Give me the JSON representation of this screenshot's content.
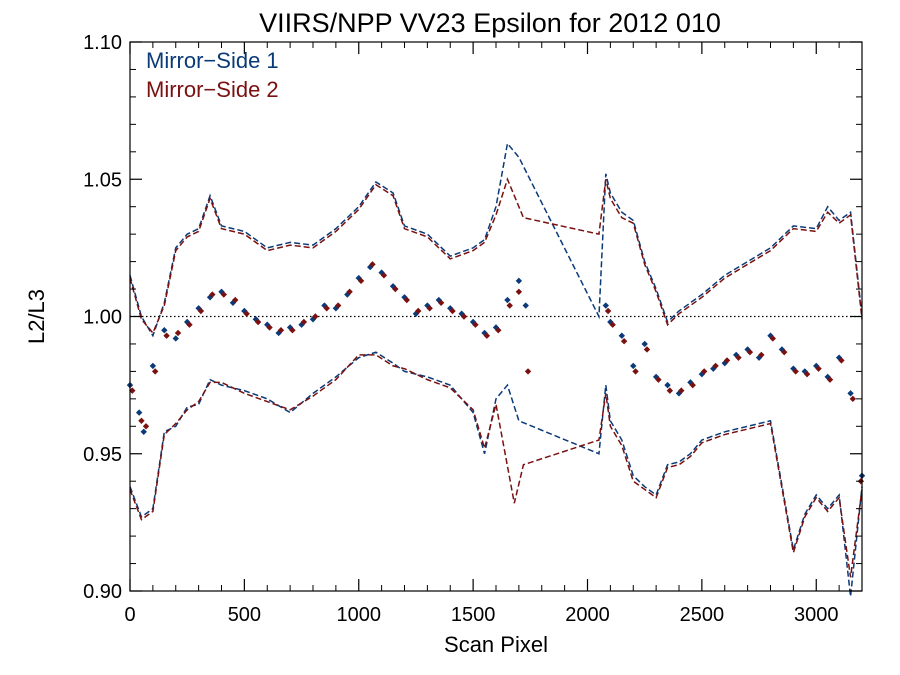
{
  "chart_data": {
    "type": "scatter",
    "title": "VIIRS/NPP VV23 Epsilon for 2012 010",
    "xlabel": "Scan Pixel",
    "ylabel": "L2/L3",
    "xlim": [
      0,
      3200
    ],
    "ylim": [
      0.9,
      1.1
    ],
    "xticks": [
      0,
      500,
      1000,
      1500,
      2000,
      2500,
      3000
    ],
    "xtick_labels": [
      "0",
      "500",
      "1000",
      "1500",
      "2000",
      "2500",
      "3000"
    ],
    "yticks": [
      0.9,
      0.95,
      1.0,
      1.05,
      1.1
    ],
    "ytick_labels": [
      "0.90",
      "0.95",
      "1.00",
      "1.05",
      "1.10"
    ],
    "reference_line": {
      "y": 1.0,
      "style": "dotted",
      "color": "#000000"
    },
    "grid": false,
    "legend_position": "top-left",
    "series": [
      {
        "name": "Mirror−Side 1",
        "color": "#0b3a78",
        "marker": "diamond",
        "x": [
          0,
          40,
          60,
          100,
          150,
          200,
          250,
          300,
          350,
          400,
          450,
          500,
          550,
          600,
          650,
          700,
          750,
          800,
          850,
          900,
          950,
          1000,
          1050,
          1100,
          1150,
          1200,
          1250,
          1300,
          1350,
          1400,
          1450,
          1500,
          1550,
          1600,
          1650,
          1700,
          1730,
          2080,
          2100,
          2150,
          2200,
          2250,
          2300,
          2350,
          2400,
          2450,
          2500,
          2550,
          2600,
          2650,
          2700,
          2750,
          2800,
          2850,
          2900,
          2950,
          3000,
          3050,
          3100,
          3150,
          3200
        ],
        "y": [
          0.975,
          0.965,
          0.958,
          0.982,
          0.995,
          0.992,
          0.998,
          1.003,
          1.007,
          1.009,
          1.005,
          1.002,
          0.999,
          0.997,
          0.994,
          0.996,
          0.997,
          0.999,
          1.004,
          1.003,
          1.008,
          1.014,
          1.018,
          1.016,
          1.011,
          1.007,
          1.001,
          1.004,
          1.006,
          1.003,
          1.001,
          0.998,
          0.994,
          0.996,
          1.006,
          1.013,
          1.004,
          1.004,
          0.998,
          0.993,
          0.982,
          0.99,
          0.978,
          0.975,
          0.972,
          0.976,
          0.979,
          0.981,
          0.983,
          0.986,
          0.988,
          0.985,
          0.993,
          0.988,
          0.981,
          0.98,
          0.982,
          0.978,
          0.985,
          0.972,
          0.942
        ]
      },
      {
        "name": "Mirror−Side 2",
        "color": "#7a1010",
        "marker": "diamond",
        "x": [
          10,
          50,
          70,
          110,
          160,
          210,
          260,
          310,
          360,
          410,
          460,
          510,
          560,
          610,
          660,
          710,
          760,
          810,
          860,
          910,
          960,
          1010,
          1060,
          1110,
          1160,
          1210,
          1260,
          1310,
          1360,
          1410,
          1460,
          1510,
          1560,
          1610,
          1660,
          1700,
          1740,
          2090,
          2110,
          2160,
          2210,
          2260,
          2310,
          2360,
          2410,
          2460,
          2510,
          2560,
          2610,
          2660,
          2710,
          2760,
          2810,
          2860,
          2910,
          2960,
          3010,
          3060,
          3110,
          3160,
          3195
        ],
        "y": [
          0.973,
          0.962,
          0.96,
          0.98,
          0.993,
          0.994,
          0.997,
          1.002,
          1.008,
          1.008,
          1.006,
          1.001,
          0.998,
          0.996,
          0.995,
          0.995,
          0.998,
          1.0,
          1.003,
          1.004,
          1.009,
          1.013,
          1.019,
          1.015,
          1.01,
          1.006,
          1.002,
          1.003,
          1.005,
          1.002,
          1.0,
          0.997,
          0.993,
          0.995,
          1.004,
          1.009,
          0.98,
          1.002,
          0.997,
          0.991,
          0.98,
          0.988,
          0.977,
          0.973,
          0.973,
          0.975,
          0.98,
          0.982,
          0.984,
          0.985,
          0.987,
          0.986,
          0.992,
          0.987,
          0.98,
          0.979,
          0.981,
          0.977,
          0.984,
          0.97,
          0.94
        ]
      }
    ],
    "envelopes": [
      {
        "series": "Mirror−Side 1",
        "style": "dashed",
        "color": "#0b3a78",
        "upper": {
          "x": [
            0,
            50,
            100,
            150,
            200,
            250,
            300,
            350,
            400,
            500,
            600,
            700,
            800,
            900,
            1000,
            1075,
            1150,
            1200,
            1300,
            1400,
            1500,
            1550,
            1600,
            1650,
            1700,
            2050,
            2080,
            2100,
            2150,
            2200,
            2250,
            2300,
            2350,
            2400,
            2450,
            2500,
            2600,
            2700,
            2800,
            2900,
            3000,
            3050,
            3100,
            3150,
            3200
          ],
          "y": [
            1.015,
            1.0,
            0.993,
            1.005,
            1.025,
            1.03,
            1.032,
            1.044,
            1.033,
            1.031,
            1.025,
            1.027,
            1.026,
            1.032,
            1.04,
            1.049,
            1.045,
            1.033,
            1.03,
            1.022,
            1.025,
            1.028,
            1.04,
            1.063,
            1.058,
            1.0,
            1.052,
            1.045,
            1.038,
            1.035,
            1.02,
            1.01,
            0.998,
            1.002,
            1.005,
            1.008,
            1.015,
            1.02,
            1.025,
            1.033,
            1.032,
            1.04,
            1.035,
            1.038,
            1.0
          ]
        },
        "lower": {
          "x": [
            0,
            50,
            100,
            150,
            200,
            250,
            300,
            350,
            400,
            500,
            600,
            700,
            800,
            900,
            1000,
            1075,
            1150,
            1200,
            1300,
            1400,
            1500,
            1550,
            1600,
            1650,
            1700,
            2050,
            2080,
            2100,
            2150,
            2200,
            2250,
            2300,
            2350,
            2400,
            2450,
            2500,
            2600,
            2700,
            2800,
            2900,
            2950,
            3000,
            3050,
            3100,
            3150,
            3200
          ],
          "y": [
            0.938,
            0.927,
            0.93,
            0.958,
            0.96,
            0.967,
            0.968,
            0.977,
            0.975,
            0.973,
            0.97,
            0.965,
            0.972,
            0.978,
            0.985,
            0.987,
            0.983,
            0.98,
            0.978,
            0.975,
            0.965,
            0.95,
            0.97,
            0.975,
            0.962,
            0.95,
            0.975,
            0.962,
            0.955,
            0.942,
            0.938,
            0.935,
            0.946,
            0.947,
            0.95,
            0.955,
            0.958,
            0.96,
            0.962,
            0.915,
            0.928,
            0.935,
            0.93,
            0.935,
            0.898,
            0.938
          ]
        }
      },
      {
        "series": "Mirror−Side 2",
        "style": "dashed",
        "color": "#7a1010",
        "upper": {
          "x": [
            0,
            50,
            100,
            150,
            200,
            250,
            300,
            350,
            400,
            500,
            600,
            700,
            800,
            900,
            1000,
            1075,
            1150,
            1200,
            1300,
            1400,
            1500,
            1550,
            1600,
            1650,
            1720,
            2050,
            2080,
            2100,
            2150,
            2200,
            2250,
            2300,
            2350,
            2400,
            2450,
            2500,
            2600,
            2700,
            2800,
            2900,
            3000,
            3050,
            3100,
            3150,
            3200
          ],
          "y": [
            1.014,
            0.999,
            0.994,
            1.004,
            1.024,
            1.029,
            1.031,
            1.043,
            1.032,
            1.03,
            1.024,
            1.026,
            1.025,
            1.031,
            1.039,
            1.048,
            1.044,
            1.032,
            1.029,
            1.021,
            1.024,
            1.027,
            1.037,
            1.05,
            1.036,
            1.03,
            1.05,
            1.043,
            1.036,
            1.034,
            1.019,
            1.009,
            0.997,
            1.001,
            1.004,
            1.007,
            1.014,
            1.019,
            1.024,
            1.032,
            1.031,
            1.038,
            1.034,
            1.037,
            0.999
          ]
        },
        "lower": {
          "x": [
            0,
            50,
            100,
            150,
            200,
            250,
            300,
            350,
            400,
            500,
            600,
            700,
            800,
            900,
            1000,
            1075,
            1150,
            1200,
            1300,
            1400,
            1500,
            1550,
            1600,
            1680,
            1720,
            2050,
            2080,
            2100,
            2150,
            2200,
            2250,
            2300,
            2350,
            2400,
            2450,
            2500,
            2600,
            2700,
            2800,
            2900,
            2950,
            3000,
            3050,
            3100,
            3150,
            3200
          ],
          "y": [
            0.937,
            0.926,
            0.929,
            0.957,
            0.961,
            0.966,
            0.969,
            0.976,
            0.976,
            0.972,
            0.969,
            0.966,
            0.971,
            0.977,
            0.986,
            0.986,
            0.982,
            0.981,
            0.977,
            0.974,
            0.966,
            0.952,
            0.968,
            0.932,
            0.946,
            0.955,
            0.972,
            0.96,
            0.953,
            0.94,
            0.937,
            0.934,
            0.945,
            0.946,
            0.949,
            0.954,
            0.957,
            0.959,
            0.961,
            0.914,
            0.927,
            0.934,
            0.929,
            0.934,
            0.905,
            0.937
          ]
        }
      }
    ]
  }
}
